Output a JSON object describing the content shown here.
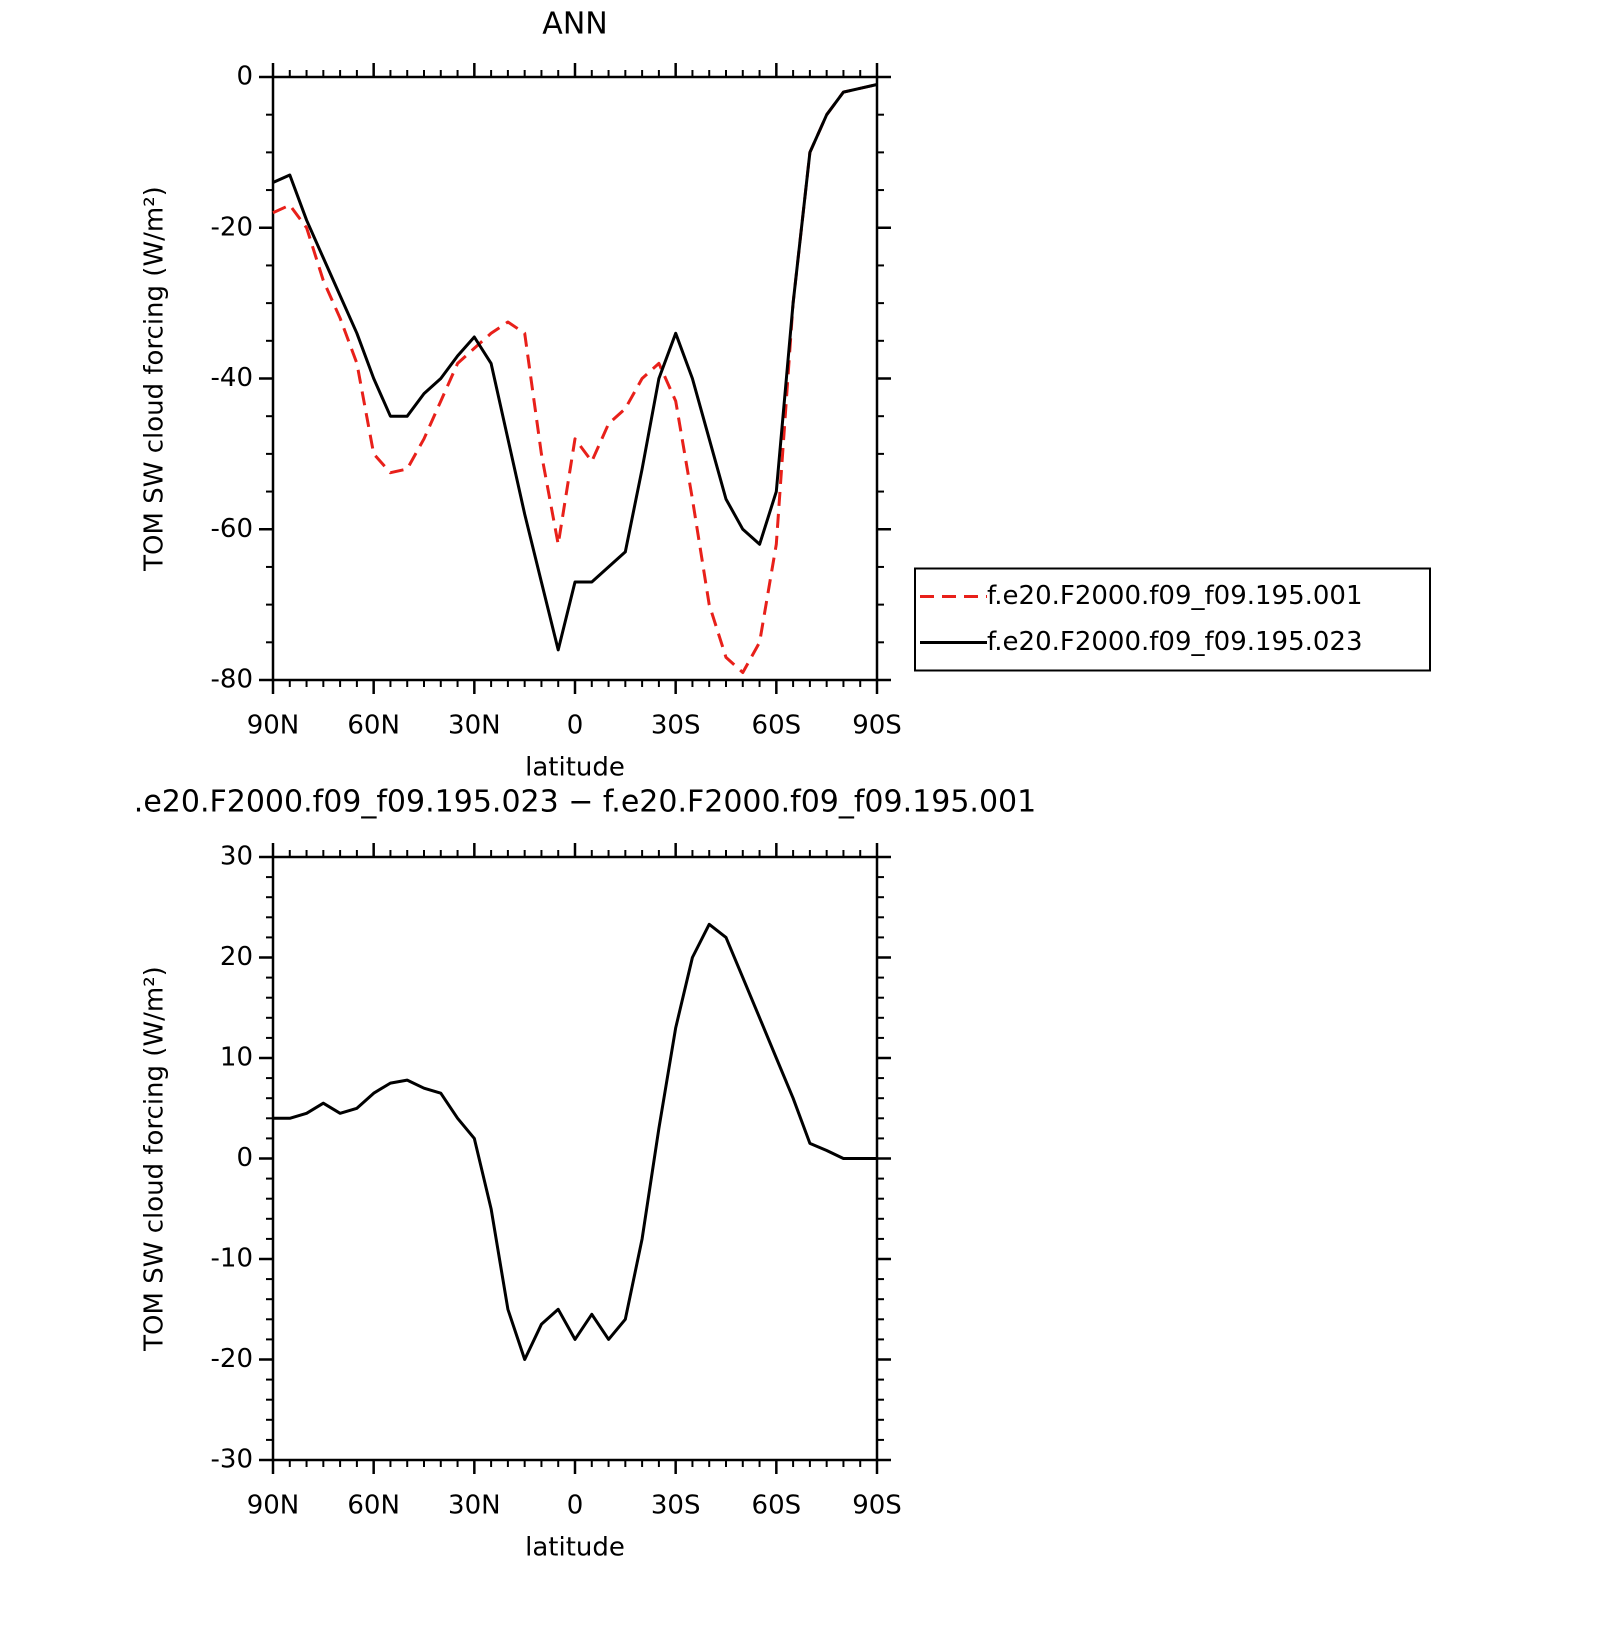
{
  "chart_data": [
    {
      "type": "line",
      "title": "ANN",
      "x_label": "latitude",
      "y_label": "TOM SW cloud forcing (W/m²)",
      "x": [
        90,
        85,
        80,
        75,
        70,
        65,
        60,
        55,
        50,
        45,
        40,
        35,
        30,
        25,
        20,
        15,
        10,
        5,
        0,
        -5,
        -10,
        -15,
        -20,
        -25,
        -30,
        -35,
        -40,
        -45,
        -50,
        -55,
        -60,
        -65,
        -70,
        -75,
        -80,
        -85,
        -90
      ],
      "series": [
        {
          "name": "f.e20.F2000.f09_f09.195.001",
          "color": "#e8201a",
          "dash": true,
          "values": [
            -18,
            -17,
            -20,
            -27,
            -32,
            -38,
            -50,
            -52.5,
            -52,
            -48,
            -43,
            -38,
            -36,
            -34,
            -32.5,
            -34,
            -50,
            -62,
            -48,
            -51,
            -46,
            -44,
            -40,
            -38,
            -43,
            -56,
            -70,
            -77,
            -79,
            -75,
            -62,
            -30,
            -10,
            -5,
            -2,
            -1.5,
            -1
          ]
        },
        {
          "name": "f.e20.F2000.f09_f09.195.023",
          "color": "#000000",
          "dash": false,
          "values": [
            -14,
            -13,
            -19,
            -24,
            -29,
            -34,
            -40,
            -45,
            -45,
            -42,
            -40,
            -37,
            -34.5,
            -38,
            -48,
            -58,
            -67,
            -76,
            -67,
            -67,
            -65,
            -63,
            -52,
            -40,
            -34,
            -40,
            -48,
            -56,
            -60,
            -62,
            -55,
            -30,
            -10,
            -5,
            -2,
            -1.5,
            -1
          ]
        }
      ],
      "xlim": [
        90,
        -90
      ],
      "xticks": [
        {
          "value": 90,
          "label": "90N"
        },
        {
          "value": 60,
          "label": "60N"
        },
        {
          "value": 30,
          "label": "30N"
        },
        0,
        {
          "value": -30,
          "label": "30S"
        },
        {
          "value": -60,
          "label": "60S"
        },
        {
          "value": -90,
          "label": "90S"
        }
      ],
      "ylim": [
        -80,
        0
      ],
      "yticks": [
        0,
        -20,
        -40,
        -60,
        -80
      ],
      "legend": "right"
    },
    {
      "type": "line",
      "title": ".e20.F2000.f09_f09.195.023 − f.e20.F2000.f09_f09.195.001",
      "x_label": "latitude",
      "y_label": "TOM SW cloud forcing (W/m²)",
      "x": [
        90,
        85,
        80,
        75,
        70,
        65,
        60,
        55,
        50,
        45,
        40,
        35,
        30,
        25,
        20,
        15,
        10,
        5,
        0,
        -5,
        -10,
        -15,
        -20,
        -25,
        -30,
        -35,
        -40,
        -45,
        -50,
        -55,
        -60,
        -65,
        -70,
        -75,
        -80,
        -85,
        -90
      ],
      "series": [
        {
          "color": "#000000",
          "dash": false,
          "values": [
            4,
            4,
            4.5,
            5.5,
            4.5,
            5,
            6.5,
            7.5,
            7.8,
            7,
            6.5,
            4,
            2,
            -5,
            -15,
            -20,
            -16.5,
            -15,
            -18,
            -15.5,
            -18,
            -16,
            -8,
            3,
            13,
            20,
            23.3,
            22,
            18,
            14,
            10,
            6,
            1.5,
            0.8,
            0,
            0,
            0
          ]
        }
      ],
      "xlim": [
        90,
        -90
      ],
      "xticks": [
        {
          "value": 90,
          "label": "90N"
        },
        {
          "value": 60,
          "label": "60N"
        },
        {
          "value": 30,
          "label": "30N"
        },
        0,
        {
          "value": -30,
          "label": "30S"
        },
        {
          "value": -60,
          "label": "60S"
        },
        {
          "value": -90,
          "label": "90S"
        }
      ],
      "ylim": [
        -30,
        30
      ],
      "yticks": [
        30,
        20,
        10,
        0,
        -10,
        -20,
        -30
      ]
    }
  ]
}
